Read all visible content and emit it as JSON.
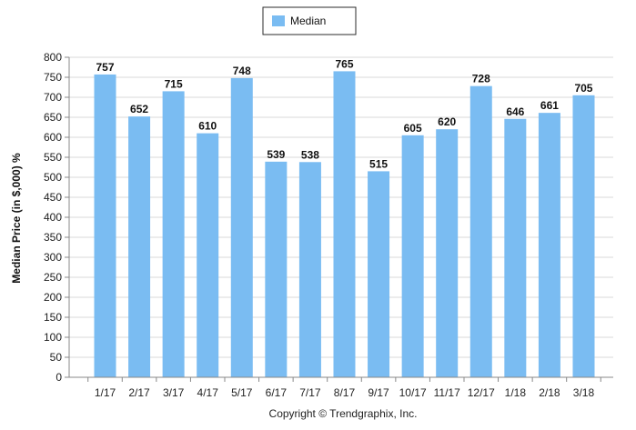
{
  "chart_data": {
    "type": "bar",
    "categories": [
      "1/17",
      "2/17",
      "3/17",
      "4/17",
      "5/17",
      "6/17",
      "7/17",
      "8/17",
      "9/17",
      "10/17",
      "11/17",
      "12/17",
      "1/18",
      "2/18",
      "3/18"
    ],
    "series": [
      {
        "name": "Median",
        "values": [
          757,
          652,
          715,
          610,
          748,
          539,
          538,
          765,
          515,
          605,
          620,
          728,
          646,
          661,
          705
        ]
      }
    ],
    "ylabel": "Median Price (in $,000) %",
    "ylim": [
      0,
      800
    ],
    "yticks": [
      0,
      50,
      100,
      150,
      200,
      250,
      300,
      350,
      400,
      450,
      500,
      550,
      600,
      650,
      700,
      750,
      800
    ],
    "grid": true,
    "legend_position": "top-center",
    "bar_color": "#7abcf2",
    "copyright": "Copyright © Trendgraphix, Inc."
  }
}
